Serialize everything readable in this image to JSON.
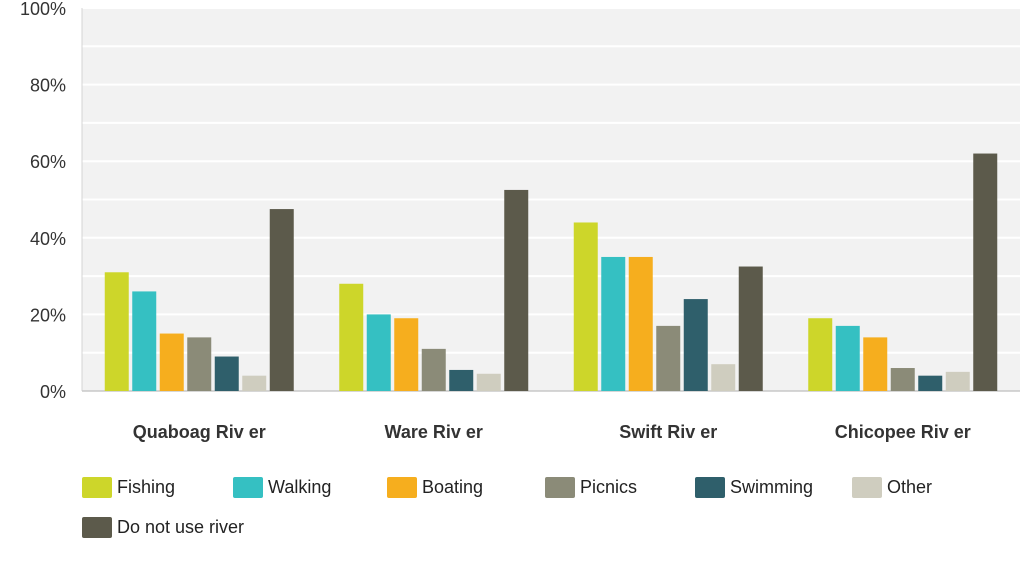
{
  "chart_data": {
    "type": "bar",
    "title": "",
    "xlabel": "",
    "ylabel": "",
    "ylim": [
      0,
      100
    ],
    "y_tick_values": [
      0,
      20,
      40,
      60,
      80,
      100
    ],
    "y_tick_labels": [
      "0%",
      "20%",
      "40%",
      "60%",
      "80%",
      "100%"
    ],
    "grid": true,
    "legend_position": "bottom",
    "categories": [
      "Quaboag Riv er",
      "Ware Riv er",
      "Swift Riv er",
      "Chicopee Riv er"
    ],
    "series": [
      {
        "name": "Fishing",
        "color": "#cdd62a",
        "values": [
          31,
          28,
          44,
          19
        ]
      },
      {
        "name": "Walking",
        "color": "#35c0c2",
        "values": [
          26,
          20,
          35,
          17
        ]
      },
      {
        "name": "Boating",
        "color": "#f6ae1e",
        "values": [
          15,
          19,
          35,
          14
        ]
      },
      {
        "name": "Picnics",
        "color": "#8b8b78",
        "values": [
          14,
          11,
          17,
          6
        ]
      },
      {
        "name": "Swimming",
        "color": "#2f5f6b",
        "values": [
          9,
          5.5,
          24,
          4
        ]
      },
      {
        "name": "Other",
        "color": "#cfcdbf",
        "values": [
          4,
          4.5,
          7,
          5
        ]
      },
      {
        "name": "Do not use river",
        "color": "#5c5a4b",
        "values": [
          47.5,
          52.5,
          32.5,
          62
        ]
      }
    ]
  }
}
